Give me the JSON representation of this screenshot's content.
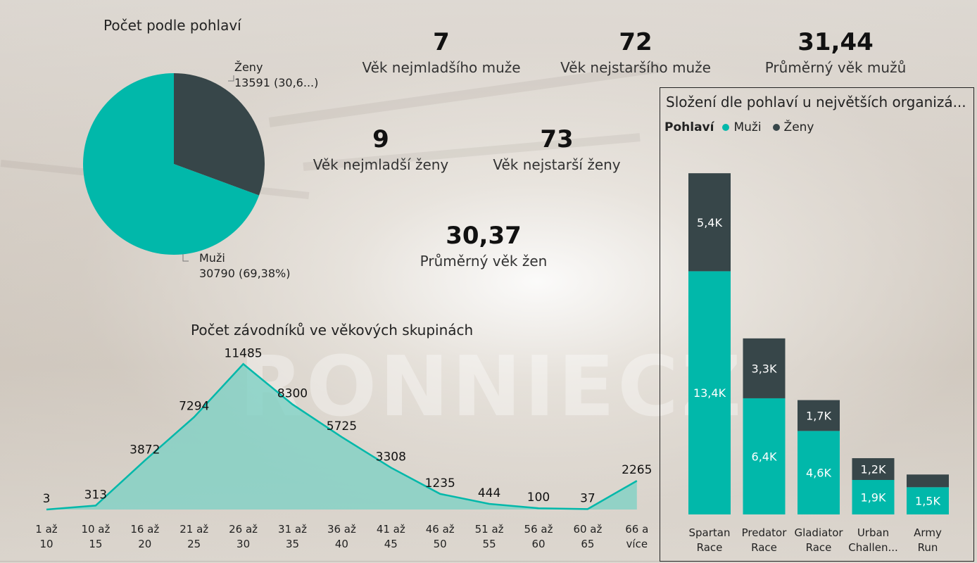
{
  "colors": {
    "men": "#01b8aa",
    "women": "#374649",
    "area_fill": "#7fd1c4",
    "area_line": "#01b8aa"
  },
  "watermark": "RONNIECZ",
  "pie": {
    "title": "Počet podle pohlaví",
    "women_label": "Ženy",
    "women_value": "13591 (30,6...)",
    "men_label": "Muži",
    "men_value": "30790 (69,38%)"
  },
  "kpis": {
    "youngest_man_value": "7",
    "youngest_man_label": "Věk nejmladšího muže",
    "oldest_man_value": "72",
    "oldest_man_label": "Věk nejstaršího muže",
    "avg_man_value": "31,44",
    "avg_man_label": "Průměrný věk mužů",
    "youngest_woman_value": "9",
    "youngest_woman_label": "Věk nejmladší ženy",
    "oldest_woman_value": "73",
    "oldest_woman_label": "Věk nejstarší ženy",
    "avg_woman_value": "30,37",
    "avg_woman_label": "Průměrný věk žen"
  },
  "area": {
    "title": "Počet závodníků ve věkových skupinách"
  },
  "bars": {
    "title": "Složení dle pohlaví  u největších organizá...",
    "legend_title": "Pohlaví",
    "legend_men": "Muži",
    "legend_women": "Ženy"
  },
  "chart_data": [
    {
      "type": "pie",
      "title": "Počet podle pohlaví",
      "categories": [
        "Ženy",
        "Muži"
      ],
      "values": [
        13591,
        30790
      ],
      "labels": [
        "13591 (30,6...)",
        "30790 (69,38%)"
      ]
    },
    {
      "type": "area",
      "title": "Počet závodníků ve věkových skupinách",
      "categories": [
        "1 až 10",
        "10 až 15",
        "16 až 20",
        "21 až 25",
        "26 až 30",
        "31 až 35",
        "36 až 40",
        "41 až 45",
        "46 až 50",
        "51 až 55",
        "56 až 60",
        "60 až 65",
        "66 a více"
      ],
      "category_lines": [
        [
          "1 až",
          "10"
        ],
        [
          "10 až",
          "15"
        ],
        [
          "16 až",
          "20"
        ],
        [
          "21 až",
          "25"
        ],
        [
          "26 až",
          "30"
        ],
        [
          "31 až",
          "35"
        ],
        [
          "36 až",
          "40"
        ],
        [
          "41 až",
          "45"
        ],
        [
          "46 až",
          "50"
        ],
        [
          "51 až",
          "55"
        ],
        [
          "56 až",
          "60"
        ],
        [
          "60 až",
          "65"
        ],
        [
          "66 a",
          "více"
        ]
      ],
      "values": [
        3,
        313,
        3872,
        7294,
        11485,
        8300,
        5725,
        3308,
        1235,
        444,
        100,
        37,
        2265
      ],
      "ylim": [
        0,
        12000
      ]
    },
    {
      "type": "bar",
      "stacked": true,
      "title": "Složení dle pohlaví  u největších organizá...",
      "categories": [
        "Spartan Race",
        "Predator Race",
        "Gladiator Race",
        "Urban Challen...",
        "Army Run"
      ],
      "category_lines": [
        [
          "Spartan",
          "Race"
        ],
        [
          "Predator",
          "Race"
        ],
        [
          "Gladiator",
          "Race"
        ],
        [
          "Urban",
          "Challen..."
        ],
        [
          "Army",
          "Run"
        ]
      ],
      "legend": "top-left",
      "series": [
        {
          "name": "Muži",
          "values": [
            13400,
            6400,
            4600,
            1900,
            1500
          ],
          "labels": [
            "13,4K",
            "6,4K",
            "4,6K",
            "1,9K",
            "1,5K"
          ]
        },
        {
          "name": "Ženy",
          "values": [
            5400,
            3300,
            1700,
            1200,
            700
          ],
          "labels": [
            "5,4K",
            "3,3K",
            "1,7K",
            "1,2K",
            ""
          ]
        }
      ],
      "ylim": [
        0,
        19000
      ]
    }
  ]
}
